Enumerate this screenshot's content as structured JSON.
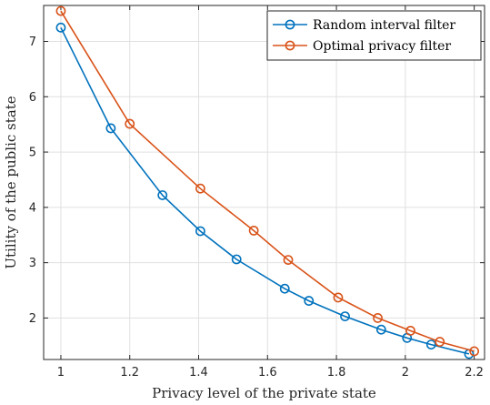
{
  "chart_data": {
    "type": "line",
    "xlabel": "Privacy level of the private state",
    "ylabel": "Utility of the public state",
    "xlim": [
      0.95,
      2.23
    ],
    "ylim": [
      1.25,
      7.65
    ],
    "xticks": [
      "1",
      "1.2",
      "1.4",
      "1.6",
      "1.8",
      "2",
      "2.2"
    ],
    "yticks": [
      "2",
      "3",
      "4",
      "5",
      "6",
      "7"
    ],
    "grid": true,
    "legend_position": "top-right",
    "series": [
      {
        "name": "Random interval filter",
        "color": "#0072BD",
        "marker": "circle",
        "x": [
          1.0,
          1.145,
          1.295,
          1.405,
          1.51,
          1.65,
          1.72,
          1.825,
          1.93,
          2.005,
          2.075,
          2.185
        ],
        "y": [
          7.25,
          5.43,
          4.22,
          3.57,
          3.06,
          2.53,
          2.31,
          2.03,
          1.79,
          1.64,
          1.52,
          1.35
        ]
      },
      {
        "name": "Optimal privacy filter",
        "color": "#D95319",
        "marker": "circle",
        "x": [
          1.0,
          1.2,
          1.405,
          1.56,
          1.66,
          1.805,
          1.92,
          2.015,
          2.1,
          2.2
        ],
        "y": [
          7.55,
          5.51,
          4.34,
          3.58,
          3.05,
          2.37,
          2.0,
          1.77,
          1.57,
          1.4
        ]
      }
    ]
  }
}
